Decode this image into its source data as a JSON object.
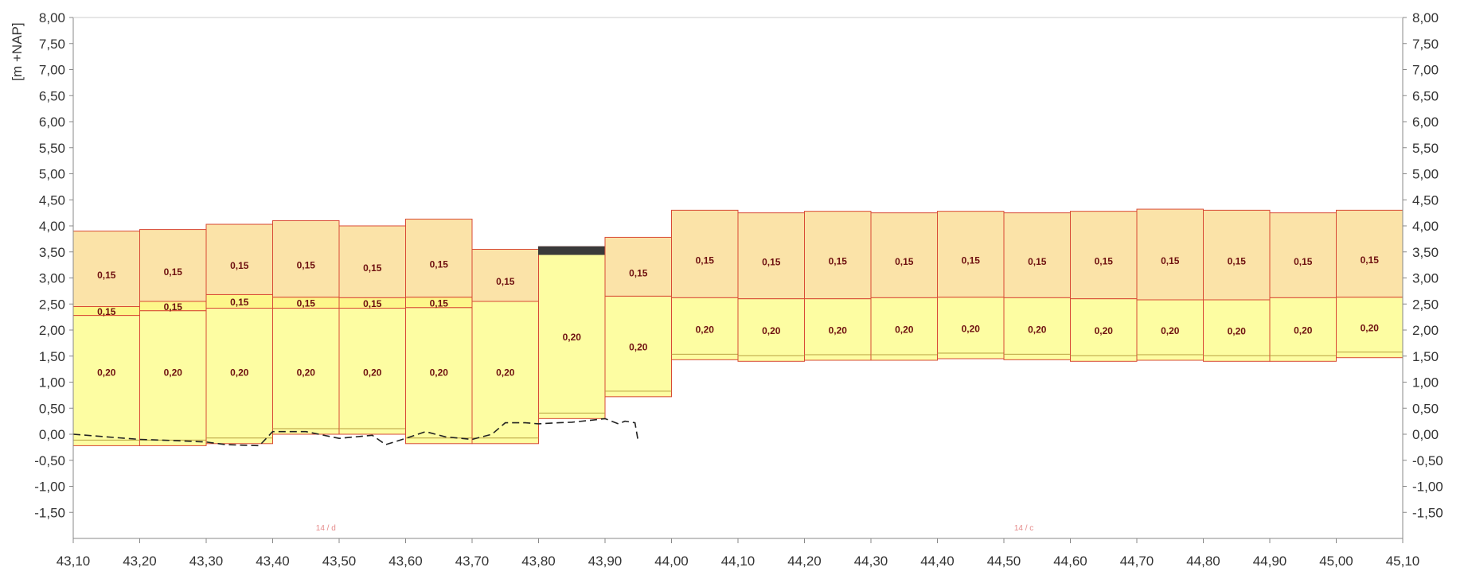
{
  "chart_data": {
    "type": "bar",
    "ylabel": "[m +NAP]",
    "xlim": [
      43.1,
      45.1
    ],
    "ylim": [
      -2.0,
      8.0
    ],
    "y_ticks": [
      8.0,
      7.5,
      7.0,
      6.5,
      6.0,
      5.5,
      5.0,
      4.5,
      4.0,
      3.5,
      3.0,
      2.5,
      2.0,
      1.5,
      1.0,
      0.5,
      0.0,
      -0.5,
      -1.0,
      -1.5
    ],
    "y_tick_labels": [
      "8,00",
      "7,50",
      "7,00",
      "6,50",
      "6,00",
      "5,50",
      "5,00",
      "4,50",
      "4,00",
      "3,50",
      "3,00",
      "2,50",
      "2,00",
      "1,50",
      "1,00",
      "0,50",
      "0,00",
      "-0,50",
      "-1,00",
      "-1,50"
    ],
    "x_ticks": [
      43.1,
      43.2,
      43.3,
      43.4,
      43.5,
      43.6,
      43.7,
      43.8,
      43.9,
      44.0,
      44.1,
      44.2,
      44.3,
      44.4,
      44.5,
      44.6,
      44.7,
      44.8,
      44.9,
      45.0,
      45.1
    ],
    "x_tick_labels": [
      "43,10",
      "43,20",
      "43,30",
      "43,40",
      "43,50",
      "43,60",
      "43,70",
      "43,80",
      "43,90",
      "44,00",
      "44,10",
      "44,20",
      "44,30",
      "44,40",
      "44,50",
      "44,60",
      "44,70",
      "44,80",
      "44,90",
      "45,00",
      "45,10"
    ],
    "grid": false,
    "colors": {
      "upper_layer": "#fbe3a8",
      "middle_layer": "#fdf78a",
      "lower_layer": "#fdfda2",
      "dark_cap": "#3a3a3a",
      "outline": "#d84a35",
      "dashed_line": "#222222",
      "axis": "#888888"
    },
    "columns": [
      {
        "x0": 43.1,
        "x1": 43.2,
        "top": 3.9,
        "mid_top": 2.45,
        "low_top": 2.28,
        "bottom": -0.22,
        "upper_label": "0,15",
        "middle_label": "0,15",
        "lower_label": "0,20"
      },
      {
        "x0": 43.2,
        "x1": 43.3,
        "top": 3.93,
        "mid_top": 2.55,
        "low_top": 2.37,
        "bottom": -0.22,
        "upper_label": "0,15",
        "middle_label": "0,15",
        "lower_label": "0,20"
      },
      {
        "x0": 43.3,
        "x1": 43.4,
        "top": 4.03,
        "mid_top": 2.68,
        "low_top": 2.42,
        "bottom": -0.18,
        "upper_label": "0,15",
        "middle_label": "0,15",
        "lower_label": "0,20"
      },
      {
        "x0": 43.4,
        "x1": 43.5,
        "top": 4.1,
        "mid_top": 2.63,
        "low_top": 2.42,
        "bottom": 0.0,
        "upper_label": "0,15",
        "middle_label": "0,15",
        "lower_label": "0,20"
      },
      {
        "x0": 43.5,
        "x1": 43.6,
        "top": 4.0,
        "mid_top": 2.62,
        "low_top": 2.42,
        "bottom": 0.0,
        "upper_label": "0,15",
        "middle_label": "0,15",
        "lower_label": "0,20"
      },
      {
        "x0": 43.6,
        "x1": 43.7,
        "top": 4.13,
        "mid_top": 2.63,
        "low_top": 2.43,
        "bottom": -0.18,
        "upper_label": "0,15",
        "middle_label": "0,15",
        "lower_label": "0,20"
      },
      {
        "x0": 43.7,
        "x1": 43.8,
        "top": 3.55,
        "mid_top": 2.55,
        "low_top": 2.55,
        "bottom": -0.18,
        "upper_label": "0,15",
        "middle_label": "",
        "lower_label": "0,20"
      },
      {
        "x0": 43.8,
        "x1": 43.9,
        "top": 3.6,
        "mid_top": 3.45,
        "low_top": 3.45,
        "bottom": 0.3,
        "upper_label": "",
        "middle_label": "",
        "lower_label": "0,20",
        "dark_cap": true
      },
      {
        "x0": 43.9,
        "x1": 44.0,
        "top": 3.78,
        "mid_top": 2.65,
        "low_top": 2.65,
        "bottom": 0.72,
        "upper_label": "0,15",
        "middle_label": "",
        "lower_label": "0,20"
      },
      {
        "x0": 44.0,
        "x1": 44.1,
        "top": 4.3,
        "mid_top": 2.62,
        "low_top": 2.62,
        "bottom": 1.43,
        "upper_label": "0,15",
        "middle_label": "",
        "lower_label": "0,20"
      },
      {
        "x0": 44.1,
        "x1": 44.2,
        "top": 4.25,
        "mid_top": 2.6,
        "low_top": 2.6,
        "bottom": 1.4,
        "upper_label": "0,15",
        "middle_label": "",
        "lower_label": "0,20"
      },
      {
        "x0": 44.2,
        "x1": 44.3,
        "top": 4.28,
        "mid_top": 2.6,
        "low_top": 2.6,
        "bottom": 1.42,
        "upper_label": "0,15",
        "middle_label": "",
        "lower_label": "0,20"
      },
      {
        "x0": 44.3,
        "x1": 44.4,
        "top": 4.25,
        "mid_top": 2.62,
        "low_top": 2.62,
        "bottom": 1.42,
        "upper_label": "0,15",
        "middle_label": "",
        "lower_label": "0,20"
      },
      {
        "x0": 44.4,
        "x1": 44.5,
        "top": 4.28,
        "mid_top": 2.63,
        "low_top": 2.63,
        "bottom": 1.45,
        "upper_label": "0,15",
        "middle_label": "",
        "lower_label": "0,20"
      },
      {
        "x0": 44.5,
        "x1": 44.6,
        "top": 4.25,
        "mid_top": 2.62,
        "low_top": 2.62,
        "bottom": 1.43,
        "upper_label": "0,15",
        "middle_label": "",
        "lower_label": "0,20"
      },
      {
        "x0": 44.6,
        "x1": 44.7,
        "top": 4.28,
        "mid_top": 2.6,
        "low_top": 2.6,
        "bottom": 1.4,
        "upper_label": "0,15",
        "middle_label": "",
        "lower_label": "0,20"
      },
      {
        "x0": 44.7,
        "x1": 44.8,
        "top": 4.32,
        "mid_top": 2.58,
        "low_top": 2.58,
        "bottom": 1.42,
        "upper_label": "0,15",
        "middle_label": "",
        "lower_label": "0,20"
      },
      {
        "x0": 44.8,
        "x1": 44.9,
        "top": 4.3,
        "mid_top": 2.58,
        "low_top": 2.58,
        "bottom": 1.4,
        "upper_label": "0,15",
        "middle_label": "",
        "lower_label": "0,20"
      },
      {
        "x0": 44.9,
        "x1": 45.0,
        "top": 4.25,
        "mid_top": 2.62,
        "low_top": 2.62,
        "bottom": 1.4,
        "upper_label": "0,15",
        "middle_label": "",
        "lower_label": "0,20"
      },
      {
        "x0": 45.0,
        "x1": 45.1,
        "top": 4.3,
        "mid_top": 2.63,
        "low_top": 2.63,
        "bottom": 1.47,
        "upper_label": "0,15",
        "middle_label": "",
        "lower_label": "0,20"
      }
    ],
    "dashed_line": {
      "x": [
        43.1,
        43.15,
        43.2,
        43.25,
        43.3,
        43.33,
        43.38,
        43.4,
        43.45,
        43.5,
        43.55,
        43.57,
        43.6,
        43.63,
        43.66,
        43.7,
        43.73,
        43.75,
        43.78,
        43.8,
        43.83,
        43.85,
        43.88,
        43.9,
        43.92,
        43.93,
        43.945,
        43.95
      ],
      "y": [
        0.0,
        -0.05,
        -0.1,
        -0.12,
        -0.15,
        -0.2,
        -0.22,
        0.05,
        0.05,
        -0.08,
        -0.02,
        -0.2,
        -0.08,
        0.05,
        -0.05,
        -0.1,
        0.0,
        0.22,
        0.22,
        0.2,
        0.22,
        0.23,
        0.27,
        0.3,
        0.2,
        0.25,
        0.22,
        -0.15
      ]
    },
    "annotations": [
      {
        "text": "14 / d",
        "x": 43.48,
        "y": -1.85
      },
      {
        "text": "14 / c",
        "x": 44.53,
        "y": -1.85
      }
    ]
  }
}
